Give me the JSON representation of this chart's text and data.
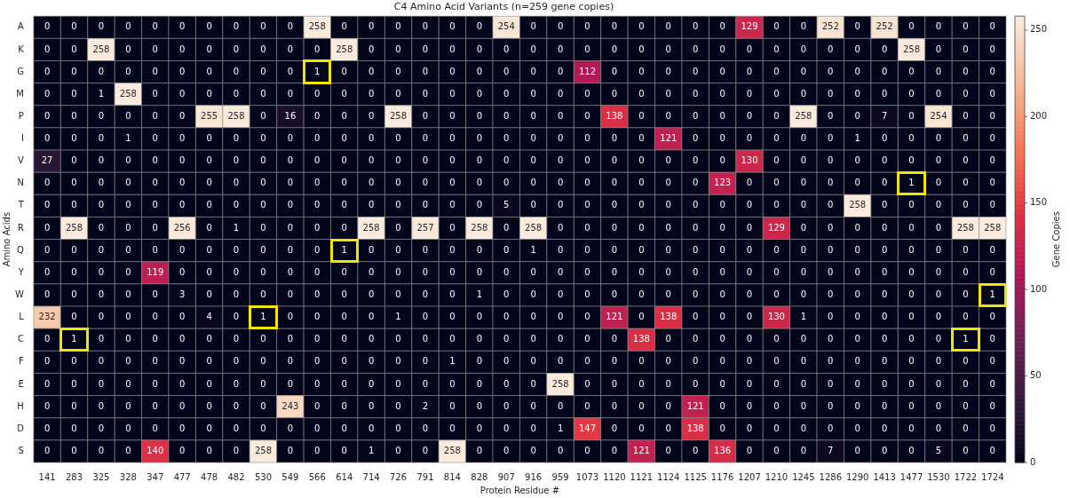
{
  "chart_data": {
    "type": "heatmap",
    "title": "C4 Amino Acid Variants (n=259 gene copies)",
    "xlabel": "Protein Residue #",
    "ylabel": "Amino Acids",
    "clabel": "Gene Copies",
    "categories": [
      "141",
      "283",
      "325",
      "328",
      "347",
      "477",
      "478",
      "482",
      "530",
      "549",
      "566",
      "614",
      "714",
      "726",
      "791",
      "814",
      "828",
      "907",
      "916",
      "959",
      "1073",
      "1120",
      "1121",
      "1124",
      "1125",
      "1176",
      "1207",
      "1210",
      "1245",
      "1286",
      "1290",
      "1413",
      "1477",
      "1530",
      "1722",
      "1724"
    ],
    "y_categories": [
      "A",
      "K",
      "G",
      "M",
      "P",
      "I",
      "V",
      "N",
      "T",
      "R",
      "Q",
      "Y",
      "W",
      "L",
      "C",
      "F",
      "E",
      "H",
      "D",
      "S"
    ],
    "cells": [
      [
        0,
        0,
        0,
        0,
        0,
        0,
        0,
        0,
        0,
        0,
        258,
        0,
        0,
        0,
        0,
        0,
        0,
        254,
        0,
        0,
        0,
        0,
        0,
        0,
        0,
        0,
        129,
        0,
        0,
        252,
        0,
        252,
        0,
        0,
        0,
        0
      ],
      [
        0,
        0,
        258,
        0,
        0,
        0,
        0,
        0,
        0,
        0,
        0,
        258,
        0,
        0,
        0,
        0,
        0,
        0,
        0,
        0,
        0,
        0,
        0,
        0,
        0,
        0,
        0,
        0,
        0,
        0,
        0,
        0,
        258,
        0,
        0,
        0
      ],
      [
        0,
        0,
        0,
        0,
        0,
        0,
        0,
        0,
        0,
        0,
        1,
        0,
        0,
        0,
        0,
        0,
        0,
        0,
        0,
        0,
        112,
        0,
        0,
        0,
        0,
        0,
        0,
        0,
        0,
        0,
        0,
        0,
        0,
        0,
        0,
        0
      ],
      [
        0,
        0,
        1,
        258,
        0,
        0,
        0,
        0,
        0,
        0,
        0,
        0,
        0,
        0,
        0,
        0,
        0,
        0,
        0,
        0,
        0,
        0,
        0,
        0,
        0,
        0,
        0,
        0,
        0,
        0,
        0,
        0,
        0,
        0,
        0,
        0
      ],
      [
        0,
        0,
        0,
        0,
        0,
        0,
        255,
        258,
        0,
        16,
        0,
        0,
        0,
        258,
        0,
        0,
        0,
        0,
        0,
        0,
        0,
        138,
        0,
        0,
        0,
        0,
        0,
        0,
        258,
        0,
        0,
        7,
        0,
        254,
        0,
        0
      ],
      [
        0,
        0,
        0,
        1,
        0,
        0,
        0,
        0,
        0,
        0,
        0,
        0,
        0,
        0,
        0,
        0,
        0,
        0,
        0,
        0,
        0,
        0,
        0,
        121,
        0,
        0,
        0,
        0,
        0,
        0,
        1,
        0,
        0,
        0,
        0,
        0
      ],
      [
        27,
        0,
        0,
        0,
        0,
        0,
        0,
        0,
        0,
        0,
        0,
        0,
        0,
        0,
        0,
        0,
        0,
        0,
        0,
        0,
        0,
        0,
        0,
        0,
        0,
        0,
        130,
        0,
        0,
        0,
        0,
        0,
        0,
        0,
        0,
        0
      ],
      [
        0,
        0,
        0,
        0,
        0,
        0,
        0,
        0,
        0,
        0,
        0,
        0,
        0,
        0,
        0,
        0,
        0,
        0,
        0,
        0,
        0,
        0,
        0,
        0,
        0,
        123,
        0,
        0,
        0,
        0,
        0,
        0,
        1,
        0,
        0,
        0
      ],
      [
        0,
        0,
        0,
        0,
        0,
        0,
        0,
        0,
        0,
        0,
        0,
        0,
        0,
        0,
        0,
        0,
        0,
        5,
        0,
        0,
        0,
        0,
        0,
        0,
        0,
        0,
        0,
        0,
        0,
        0,
        258,
        0,
        0,
        0,
        0,
        0
      ],
      [
        0,
        258,
        0,
        0,
        0,
        256,
        0,
        1,
        0,
        0,
        0,
        0,
        258,
        0,
        257,
        0,
        258,
        0,
        258,
        0,
        0,
        0,
        0,
        0,
        0,
        0,
        0,
        129,
        0,
        0,
        0,
        0,
        0,
        0,
        258,
        258
      ],
      [
        0,
        0,
        0,
        0,
        0,
        0,
        0,
        0,
        0,
        0,
        0,
        1,
        0,
        0,
        0,
        0,
        0,
        0,
        1,
        0,
        0,
        0,
        0,
        0,
        0,
        0,
        0,
        0,
        0,
        0,
        0,
        0,
        0,
        0,
        0,
        0
      ],
      [
        0,
        0,
        0,
        0,
        119,
        0,
        0,
        0,
        0,
        0,
        0,
        0,
        0,
        0,
        0,
        0,
        0,
        0,
        0,
        0,
        0,
        0,
        0,
        0,
        0,
        0,
        0,
        0,
        0,
        0,
        0,
        0,
        0,
        0,
        0,
        0
      ],
      [
        0,
        0,
        0,
        0,
        0,
        3,
        0,
        0,
        0,
        0,
        0,
        0,
        0,
        0,
        0,
        0,
        1,
        0,
        0,
        0,
        0,
        0,
        0,
        0,
        0,
        0,
        0,
        0,
        0,
        0,
        0,
        0,
        0,
        0,
        0,
        1
      ],
      [
        232,
        0,
        0,
        0,
        0,
        0,
        4,
        0,
        1,
        0,
        0,
        0,
        0,
        1,
        0,
        0,
        0,
        0,
        0,
        0,
        0,
        121,
        0,
        138,
        0,
        0,
        0,
        130,
        1,
        0,
        0,
        0,
        0,
        0,
        0,
        0
      ],
      [
        0,
        1,
        0,
        0,
        0,
        0,
        0,
        0,
        0,
        0,
        0,
        0,
        0,
        0,
        0,
        0,
        0,
        0,
        0,
        0,
        0,
        0,
        138,
        0,
        0,
        0,
        0,
        0,
        0,
        0,
        0,
        0,
        0,
        0,
        1,
        0
      ],
      [
        0,
        0,
        0,
        0,
        0,
        0,
        0,
        0,
        0,
        0,
        0,
        0,
        0,
        0,
        0,
        1,
        0,
        0,
        0,
        0,
        0,
        0,
        0,
        0,
        0,
        0,
        0,
        0,
        0,
        0,
        0,
        0,
        0,
        0,
        0,
        0
      ],
      [
        0,
        0,
        0,
        0,
        0,
        0,
        0,
        0,
        0,
        0,
        0,
        0,
        0,
        0,
        0,
        0,
        0,
        0,
        0,
        258,
        0,
        0,
        0,
        0,
        0,
        0,
        0,
        0,
        0,
        0,
        0,
        0,
        0,
        0,
        0,
        0
      ],
      [
        0,
        0,
        0,
        0,
        0,
        0,
        0,
        0,
        0,
        243,
        0,
        0,
        0,
        0,
        2,
        0,
        0,
        0,
        0,
        0,
        0,
        0,
        0,
        0,
        121,
        0,
        0,
        0,
        0,
        0,
        0,
        0,
        0,
        0,
        0,
        0
      ],
      [
        0,
        0,
        0,
        0,
        0,
        0,
        0,
        0,
        0,
        0,
        0,
        0,
        0,
        0,
        0,
        0,
        0,
        0,
        0,
        1,
        147,
        0,
        0,
        0,
        138,
        0,
        0,
        0,
        0,
        0,
        0,
        0,
        0,
        0,
        0,
        0
      ],
      [
        0,
        0,
        0,
        0,
        140,
        0,
        0,
        0,
        258,
        0,
        0,
        0,
        1,
        0,
        0,
        258,
        0,
        0,
        0,
        0,
        0,
        0,
        121,
        0,
        0,
        136,
        0,
        0,
        0,
        7,
        0,
        0,
        0,
        5,
        0,
        0
      ]
    ],
    "data_labels": true,
    "clim": [
      0,
      258
    ],
    "cticks": [
      0,
      50,
      100,
      150,
      200,
      250
    ]
  }
}
